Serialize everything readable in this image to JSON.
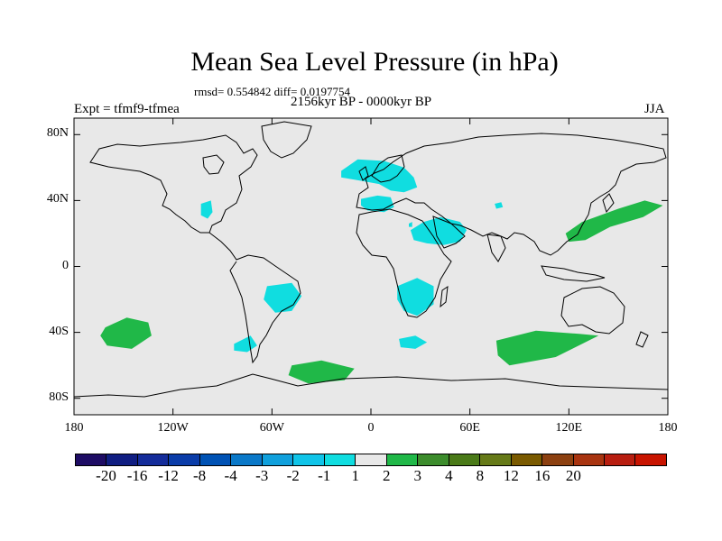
{
  "title": "Mean Sea Level Pressure (in hPa)",
  "stats": "rmsd= 0.554842 diff= 0.0197754",
  "subtitle": "2156kyr BP - 0000kyr BP",
  "experiment": "Expt = tfmf9-tfmea",
  "season": "JJA",
  "map": {
    "lon_range": [
      -180,
      180
    ],
    "lat_range": [
      -90,
      90
    ],
    "background_color": "#e8e8e8",
    "y_ticks": [
      {
        "lat": 80,
        "label": "80N"
      },
      {
        "lat": 40,
        "label": "40N"
      },
      {
        "lat": 0,
        "label": "0"
      },
      {
        "lat": -40,
        "label": "40S"
      },
      {
        "lat": -80,
        "label": "80S"
      }
    ],
    "x_ticks": [
      {
        "lon": -180,
        "label": "180"
      },
      {
        "lon": -120,
        "label": "120W"
      },
      {
        "lon": -60,
        "label": "60W"
      },
      {
        "lon": 0,
        "label": "0"
      },
      {
        "lon": 60,
        "label": "60E"
      },
      {
        "lon": 120,
        "label": "120E"
      },
      {
        "lon": 180,
        "label": "180"
      }
    ]
  },
  "anomalies": [
    {
      "name": "anomaly-north-atlantic-europe",
      "color": "#10dde0",
      "value": "-1 to -2",
      "points": [
        [
          -18,
          58
        ],
        [
          -8,
          65
        ],
        [
          8,
          64
        ],
        [
          20,
          60
        ],
        [
          26,
          54
        ],
        [
          28,
          48
        ],
        [
          20,
          45
        ],
        [
          12,
          46
        ],
        [
          5,
          50
        ],
        [
          -6,
          52
        ],
        [
          -18,
          54
        ]
      ]
    },
    {
      "name": "anomaly-mediterranean-west",
      "color": "#10dde0",
      "value": "-1 to -2",
      "points": [
        [
          -6,
          41
        ],
        [
          4,
          43
        ],
        [
          12,
          42
        ],
        [
          14,
          36
        ],
        [
          8,
          33
        ],
        [
          -2,
          34
        ],
        [
          -6,
          37
        ]
      ]
    },
    {
      "name": "anomaly-arabia-east-africa",
      "color": "#10dde0",
      "value": "-1 to -2",
      "points": [
        [
          24,
          22
        ],
        [
          32,
          27
        ],
        [
          42,
          30
        ],
        [
          54,
          27
        ],
        [
          58,
          22
        ],
        [
          54,
          15
        ],
        [
          44,
          13
        ],
        [
          34,
          14
        ],
        [
          26,
          16
        ]
      ]
    },
    {
      "name": "anomaly-north-pacific-east",
      "color": "#10dde0",
      "value": "-1 to -2",
      "points": [
        [
          -103,
          38
        ],
        [
          -97,
          40
        ],
        [
          -96,
          33
        ],
        [
          -99,
          29
        ],
        [
          -103,
          31
        ]
      ]
    },
    {
      "name": "anomaly-eastern-mediterranean-speck",
      "color": "#10dde0",
      "value": "-1 to -2",
      "points": [
        [
          23,
          26
        ],
        [
          25,
          27
        ],
        [
          25,
          24
        ],
        [
          23,
          24
        ]
      ]
    },
    {
      "name": "anomaly-caspian-speck",
      "color": "#10dde0",
      "value": "-1 to -2",
      "points": [
        [
          75,
          38
        ],
        [
          79,
          39
        ],
        [
          80,
          36
        ],
        [
          76,
          35
        ]
      ]
    },
    {
      "name": "anomaly-south-america",
      "color": "#10dde0",
      "value": "-1 to -2",
      "points": [
        [
          -63,
          -12
        ],
        [
          -48,
          -10
        ],
        [
          -42,
          -18
        ],
        [
          -48,
          -27
        ],
        [
          -58,
          -28
        ],
        [
          -65,
          -20
        ]
      ]
    },
    {
      "name": "anomaly-southern-africa",
      "color": "#10dde0",
      "value": "-1 to -2",
      "points": [
        [
          16,
          -12
        ],
        [
          28,
          -7
        ],
        [
          38,
          -12
        ],
        [
          38,
          -23
        ],
        [
          28,
          -30
        ],
        [
          20,
          -27
        ],
        [
          16,
          -20
        ]
      ]
    },
    {
      "name": "anomaly-south-atlantic",
      "color": "#10dde0",
      "value": "-1 to -2",
      "points": [
        [
          -83,
          -47
        ],
        [
          -73,
          -42
        ],
        [
          -69,
          -48
        ],
        [
          -75,
          -52
        ],
        [
          -83,
          -51
        ]
      ]
    },
    {
      "name": "anomaly-south-atlantic-east",
      "color": "#10dde0",
      "value": "-1 to -2",
      "points": [
        [
          17,
          -44
        ],
        [
          27,
          -42
        ],
        [
          34,
          -46
        ],
        [
          27,
          -50
        ],
        [
          18,
          -49
        ]
      ]
    },
    {
      "name": "anomaly-north-pacific-west",
      "color": "#20b848",
      "value": "1 to 2",
      "points": [
        [
          118,
          20
        ],
        [
          128,
          27
        ],
        [
          150,
          35
        ],
        [
          166,
          40
        ],
        [
          177,
          37
        ],
        [
          165,
          30
        ],
        [
          145,
          24
        ],
        [
          130,
          16
        ],
        [
          120,
          15
        ]
      ]
    },
    {
      "name": "anomaly-south-pacific",
      "color": "#20b848",
      "value": "1 to 2",
      "points": [
        [
          -161,
          -37
        ],
        [
          -148,
          -31
        ],
        [
          -135,
          -34
        ],
        [
          -133,
          -42
        ],
        [
          -145,
          -50
        ],
        [
          -160,
          -48
        ],
        [
          -164,
          -42
        ]
      ]
    },
    {
      "name": "anomaly-southern-ocean-atlantic",
      "color": "#20b848",
      "value": "1 to 2",
      "points": [
        [
          -48,
          -60
        ],
        [
          -30,
          -57
        ],
        [
          -10,
          -62
        ],
        [
          -16,
          -69
        ],
        [
          -38,
          -71
        ],
        [
          -50,
          -66
        ]
      ]
    },
    {
      "name": "anomaly-southern-indian-ocean",
      "color": "#20b848",
      "value": "1 to 2",
      "points": [
        [
          76,
          -45
        ],
        [
          100,
          -39
        ],
        [
          127,
          -41
        ],
        [
          138,
          -42
        ],
        [
          112,
          -55
        ],
        [
          84,
          -60
        ],
        [
          77,
          -54
        ]
      ]
    }
  ],
  "colorbar": {
    "colors": [
      "#1e0c64",
      "#101e82",
      "#142c9a",
      "#0a3ca8",
      "#0052b4",
      "#0a78c8",
      "#10a0dc",
      "#10c4e8",
      "#10dde0",
      "#e8e8e8",
      "#20b848",
      "#3c8c2c",
      "#4a7a18",
      "#667a18",
      "#7a5a00",
      "#8c4010",
      "#a83410",
      "#b81e10",
      "#c81400"
    ],
    "labels": [
      "-20",
      "-16",
      "-12",
      "-8",
      "-4",
      "-3",
      "-2",
      "-1",
      "1",
      "2",
      "3",
      "4",
      "8",
      "12",
      "16",
      "20"
    ]
  }
}
